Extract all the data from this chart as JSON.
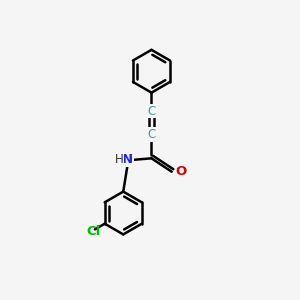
{
  "background_color": "#f5f5f5",
  "line_color": "#000000",
  "bond_width": 1.8,
  "atom_labels": {
    "C1": {
      "text": "C",
      "color": "#3d9e9e",
      "fontsize": 8.5
    },
    "C2": {
      "text": "C",
      "color": "#3d9e9e",
      "fontsize": 8.5
    },
    "N": {
      "text": "N",
      "color": "#2020ff",
      "fontsize": 8.5
    },
    "H": {
      "text": "H",
      "color": "#2f2f2f",
      "fontsize": 8.5
    },
    "O": {
      "text": "O",
      "color": "#e00000",
      "fontsize": 8.5
    },
    "Cl": {
      "text": "Cl",
      "color": "#00bb00",
      "fontsize": 8.5
    }
  }
}
